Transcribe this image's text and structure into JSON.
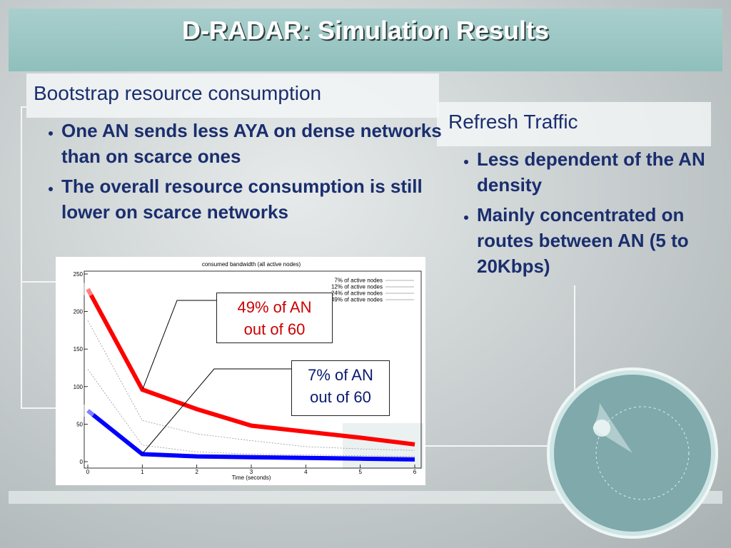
{
  "slide": {
    "title": "D-RADAR: Simulation Results",
    "left": {
      "heading": "Bootstrap resource consumption",
      "bullets": [
        "One AN sends less AYA on dense networks than on scarce ones",
        "The overall resource consumption is still lower on scarce networks"
      ]
    },
    "right": {
      "heading": "Refresh Traffic",
      "bullets": [
        "Less dependent of the AN density",
        "Mainly concentrated on routes between AN (5 to 20Kbps)"
      ]
    },
    "callouts": [
      {
        "lines": [
          "49% of AN",
          "out of 60"
        ],
        "color": "#cc0000"
      },
      {
        "lines": [
          "7% of AN",
          "out of 60"
        ],
        "color": "#0a1a6e"
      }
    ]
  },
  "chart_data": {
    "type": "line",
    "title": "consumed bandwidth (all active nodes)",
    "x_label": "Time (seconds)",
    "x": [
      0,
      1,
      2,
      3,
      4,
      5,
      6
    ],
    "xlim": [
      0,
      6
    ],
    "xticks": [
      0,
      1,
      2,
      3,
      4,
      5,
      6
    ],
    "ylim": [
      0,
      250
    ],
    "yticks": [
      0,
      50,
      100,
      150,
      200,
      250
    ],
    "series": [
      {
        "name": "7% of active nodes",
        "color": "#0000ff",
        "width": 6,
        "values": [
          68,
          10,
          7,
          6,
          5,
          4,
          3
        ]
      },
      {
        "name": "12% of active nodes",
        "color": "#999999",
        "width": 0.8,
        "values": [
          123,
          22,
          13,
          10,
          9,
          8,
          7
        ]
      },
      {
        "name": "24% of active nodes",
        "color": "#999999",
        "width": 0.8,
        "values": [
          188,
          55,
          37,
          28,
          20,
          17,
          15
        ]
      },
      {
        "name": "49% of active nodes",
        "color": "#ff0000",
        "width": 6,
        "values": [
          230,
          96,
          70,
          48,
          40,
          32,
          23
        ]
      }
    ]
  }
}
